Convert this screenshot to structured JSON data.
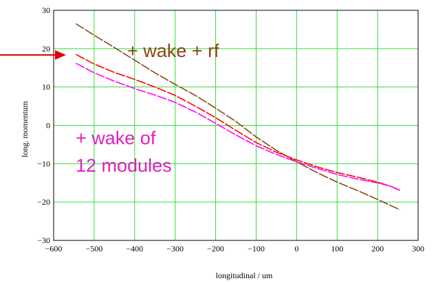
{
  "chart_data": {
    "type": "line",
    "title": "",
    "xlabel": "longitudinal / um",
    "ylabel": "long. momentum",
    "xlim": [
      -600,
      300
    ],
    "ylim": [
      -30,
      30
    ],
    "grid": true,
    "x_ticks": [
      -600,
      -500,
      -400,
      -300,
      -200,
      -100,
      0,
      100,
      200,
      300
    ],
    "x_tick_labels": [
      "−600",
      "−500",
      "−400",
      "−300",
      "−200",
      "−100",
      "0",
      "100",
      "200",
      "300"
    ],
    "y_ticks": [
      -30,
      -20,
      -10,
      0,
      10,
      20,
      30
    ],
    "y_tick_labels": [
      "−30",
      "−20",
      "−10",
      "0",
      "10",
      "20",
      "30"
    ],
    "series": [
      {
        "color": "#8B4513",
        "points": [
          [
            -545,
            26.5
          ],
          [
            -500,
            23.5
          ],
          [
            -450,
            20.3
          ],
          [
            -400,
            17.0
          ],
          [
            -350,
            13.7
          ],
          [
            -300,
            10.7
          ],
          [
            -250,
            7.8
          ],
          [
            -200,
            4.5
          ],
          [
            -150,
            1.0
          ],
          [
            -100,
            -3.0
          ],
          [
            -50,
            -6.5
          ],
          [
            0,
            -9.5
          ],
          [
            50,
            -12.3
          ],
          [
            100,
            -14.8
          ],
          [
            150,
            -17.0
          ],
          [
            200,
            -19.3
          ],
          [
            230,
            -20.8
          ],
          [
            255,
            -22.0
          ]
        ]
      },
      {
        "color": "#FF0000",
        "points": [
          [
            -545,
            18.5
          ],
          [
            -500,
            16.0
          ],
          [
            -450,
            13.8
          ],
          [
            -400,
            12.0
          ],
          [
            -350,
            10.0
          ],
          [
            -300,
            7.8
          ],
          [
            -250,
            5.0
          ],
          [
            -200,
            2.0
          ],
          [
            -150,
            -1.3
          ],
          [
            -100,
            -4.5
          ],
          [
            -50,
            -7.0
          ],
          [
            0,
            -9.0
          ],
          [
            50,
            -10.8
          ],
          [
            100,
            -12.3
          ],
          [
            150,
            -13.5
          ],
          [
            200,
            -14.8
          ],
          [
            230,
            -15.8
          ],
          [
            255,
            -17.0
          ]
        ]
      },
      {
        "color": "#FF00FF",
        "points": [
          [
            -545,
            16.2
          ],
          [
            -500,
            13.7
          ],
          [
            -450,
            11.5
          ],
          [
            -400,
            9.6
          ],
          [
            -350,
            7.9
          ],
          [
            -300,
            6.0
          ],
          [
            -250,
            3.5
          ],
          [
            -200,
            0.5
          ],
          [
            -150,
            -2.5
          ],
          [
            -100,
            -5.3
          ],
          [
            -50,
            -7.6
          ],
          [
            0,
            -9.5
          ],
          [
            50,
            -11.2
          ],
          [
            100,
            -12.8
          ],
          [
            150,
            -14.0
          ],
          [
            200,
            -15.0
          ],
          [
            230,
            -15.8
          ],
          [
            255,
            -16.9
          ]
        ]
      }
    ],
    "annotations": [
      {
        "text": "+ wake + rf",
        "color": "#8B4513"
      },
      {
        "text_lines": [
          "+ wake of",
          "12 modules"
        ],
        "color": "#E020C0"
      }
    ],
    "arrow_color": "#E00000",
    "grid_color": "#33DD33"
  }
}
